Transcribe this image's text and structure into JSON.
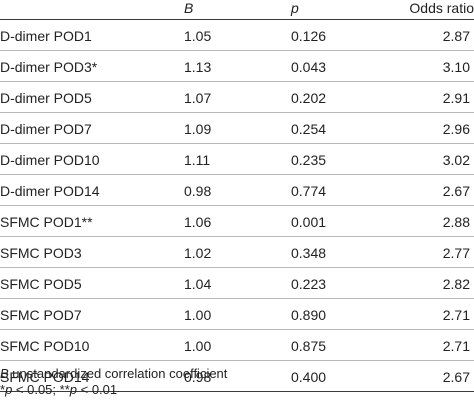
{
  "table": {
    "headers": {
      "label": "",
      "b": "B",
      "p": "p",
      "odds_ratio": "Odds ratio"
    },
    "rows": [
      {
        "label": "D-dimer POD1",
        "b": "1.05",
        "p": "0.126",
        "odds_ratio": "2.87"
      },
      {
        "label": "D-dimer POD3*",
        "b": "1.13",
        "p": "0.043",
        "odds_ratio": "3.10"
      },
      {
        "label": "D-dimer POD5",
        "b": "1.07",
        "p": "0.202",
        "odds_ratio": "2.91"
      },
      {
        "label": "D-dimer POD7",
        "b": "1.09",
        "p": "0.254",
        "odds_ratio": "2.96"
      },
      {
        "label": "D-dimer POD10",
        "b": "1.11",
        "p": "0.235",
        "odds_ratio": "3.02"
      },
      {
        "label": "D-dimer POD14",
        "b": "0.98",
        "p": "0.774",
        "odds_ratio": "2.67"
      },
      {
        "label": "SFMC POD1**",
        "b": "1.06",
        "p": "0.001",
        "odds_ratio": "2.88"
      },
      {
        "label": "SFMC POD3",
        "b": "1.02",
        "p": "0.348",
        "odds_ratio": "2.77"
      },
      {
        "label": "SFMC POD5",
        "b": "1.04",
        "p": "0.223",
        "odds_ratio": "2.82"
      },
      {
        "label": "SFMC POD7",
        "b": "1.00",
        "p": "0.890",
        "odds_ratio": "2.71"
      },
      {
        "label": "SFMC POD10",
        "b": "1.00",
        "p": "0.875",
        "odds_ratio": "2.71"
      },
      {
        "label": "SFMC POD14",
        "b": "0.98",
        "p": "0.400",
        "odds_ratio": "2.67"
      }
    ]
  },
  "footnotes": {
    "line1_symbol": "B",
    "line1_text": " unstandardized correlation coefficient",
    "line2_star1": "*",
    "line2_p1": "p",
    "line2_cond1": " < 0.05; ",
    "line2_star2": "**",
    "line2_p2": "p",
    "line2_cond2": " < 0.01"
  }
}
